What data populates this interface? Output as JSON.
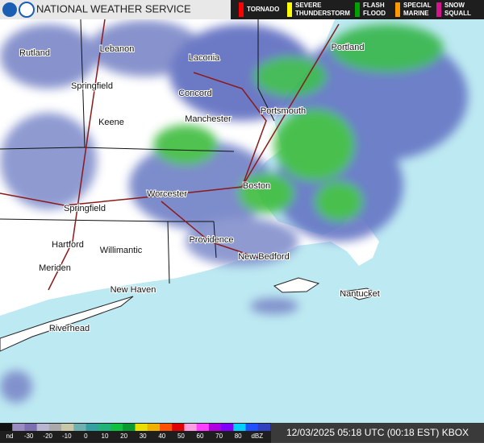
{
  "header": {
    "title": "NATIONAL WEATHER SERVICE",
    "warnings": [
      {
        "lines": [
          "TORNADO"
        ],
        "color": "#ff0000"
      },
      {
        "lines": [
          "SEVERE",
          "THUNDERSTORM"
        ],
        "color": "#ffff00"
      },
      {
        "lines": [
          "FLASH",
          "FLOOD"
        ],
        "color": "#00a000"
      },
      {
        "lines": [
          "SPECIAL",
          "MARINE"
        ],
        "color": "#ff9900"
      },
      {
        "lines": [
          "SNOW",
          "SQUALL"
        ],
        "color": "#d4148c"
      }
    ]
  },
  "map": {
    "cities": [
      "Rutland",
      "Lebanon",
      "Laconia",
      "Springfield",
      "Concord",
      "Portsmouth",
      "Keene",
      "Manchester",
      "Portland",
      "Worcester",
      "Boston",
      "Springfield",
      "Hartford",
      "Willimantic",
      "Providence",
      "New Bedford",
      "Meriden",
      "New Haven",
      "Nantucket",
      "Riverhead"
    ]
  },
  "footer": {
    "scale": [
      "nd",
      "-30",
      "-20",
      "-10",
      "0",
      "10",
      "20",
      "30",
      "40",
      "50",
      "60",
      "70",
      "80",
      "dBZ"
    ],
    "timestamp": "12/03/2025 05:18 UTC (00:18 EST) KBOX"
  }
}
